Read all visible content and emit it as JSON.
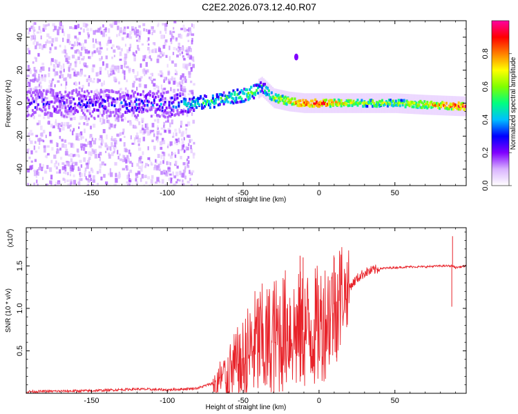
{
  "page": {
    "title": "C2E2.2026.073.12.40.R07"
  },
  "chart_data": [
    {
      "type": "heatmap",
      "title": "C2E2.2026.073.12.40.R07",
      "xlabel": "Height of straight line (km)",
      "ylabel": "Frequency (Hz)",
      "xlim": [
        -193,
        97
      ],
      "ylim": [
        -50,
        50
      ],
      "xticks": [
        -150,
        -100,
        -50,
        0,
        50
      ],
      "yticks": [
        -40,
        -20,
        0,
        20,
        40
      ],
      "colorbar": {
        "label": "Normalized spectral amplitude",
        "ticks": [
          0.0,
          0.2,
          0.4,
          0.6,
          0.8
        ],
        "range": [
          0,
          1
        ],
        "colors": [
          "#ffffff",
          "#d9b3ff",
          "#8000ff",
          "#0000ff",
          "#00bfff",
          "#00ff80",
          "#80ff00",
          "#ffff00",
          "#ff8000",
          "#ff0000",
          "#ff00a0"
        ]
      },
      "ridge": {
        "description_points_x": [
          -193,
          -150,
          -100,
          -80,
          -60,
          -45,
          -38,
          -30,
          -20,
          -10,
          0,
          10,
          30,
          50,
          70,
          97
        ],
        "frequency": [
          0,
          0,
          -1,
          0,
          3,
          6,
          10,
          3,
          1,
          0,
          0,
          0,
          0,
          0,
          -1,
          -2
        ],
        "amplitude": [
          0.25,
          0.25,
          0.3,
          0.45,
          0.5,
          0.55,
          0.5,
          0.6,
          0.75,
          0.85,
          0.9,
          0.75,
          0.6,
          0.6,
          0.7,
          0.9
        ],
        "spread_hz": [
          8,
          8,
          8,
          4,
          4,
          4,
          3,
          3,
          2,
          2,
          2,
          2,
          2,
          2,
          2,
          2
        ]
      },
      "features": [
        {
          "x": -15,
          "y": 28,
          "amplitude": 0.2
        }
      ]
    },
    {
      "type": "line",
      "xlabel": "Height of straight line (km)",
      "ylabel": "SNR (10 * v/v)",
      "yscale_label": "(x10",
      "yscale_exponent": "4",
      "xlim": [
        -193,
        97
      ],
      "ylim": [
        0,
        1.95
      ],
      "xticks": [
        -150,
        -100,
        -50,
        0,
        50
      ],
      "yticks": [
        0.5,
        1.0,
        1.5
      ],
      "color": "#e8232a",
      "series": [
        {
          "name": "SNR",
          "x": [
            -193,
            -150,
            -120,
            -100,
            -80,
            -70,
            -60,
            -55,
            -50,
            -45,
            -40,
            -35,
            -30,
            -25,
            -20,
            -15,
            -10,
            -5,
            0,
            5,
            10,
            15,
            20,
            25,
            30,
            40,
            50,
            60,
            70,
            80,
            85,
            88,
            90,
            97
          ],
          "y": [
            0.02,
            0.03,
            0.05,
            0.04,
            0.06,
            0.12,
            0.2,
            0.3,
            0.35,
            0.5,
            0.6,
            0.55,
            0.65,
            0.7,
            0.8,
            0.7,
            0.75,
            0.75,
            0.8,
            0.9,
            1.05,
            1.15,
            1.25,
            1.35,
            1.42,
            1.47,
            1.48,
            1.49,
            1.49,
            1.5,
            1.5,
            1.5,
            1.48,
            1.5
          ]
        }
      ],
      "spikes": [
        {
          "x": -12.5,
          "y": 1.62
        },
        {
          "x": -10.5,
          "y": 1.6
        },
        {
          "x": 10,
          "y": 1.6
        },
        {
          "x": 88,
          "y": 1.85
        },
        {
          "x": 87.5,
          "y": 1.02
        },
        {
          "x": 11.5,
          "y": 0.42
        }
      ]
    }
  ]
}
